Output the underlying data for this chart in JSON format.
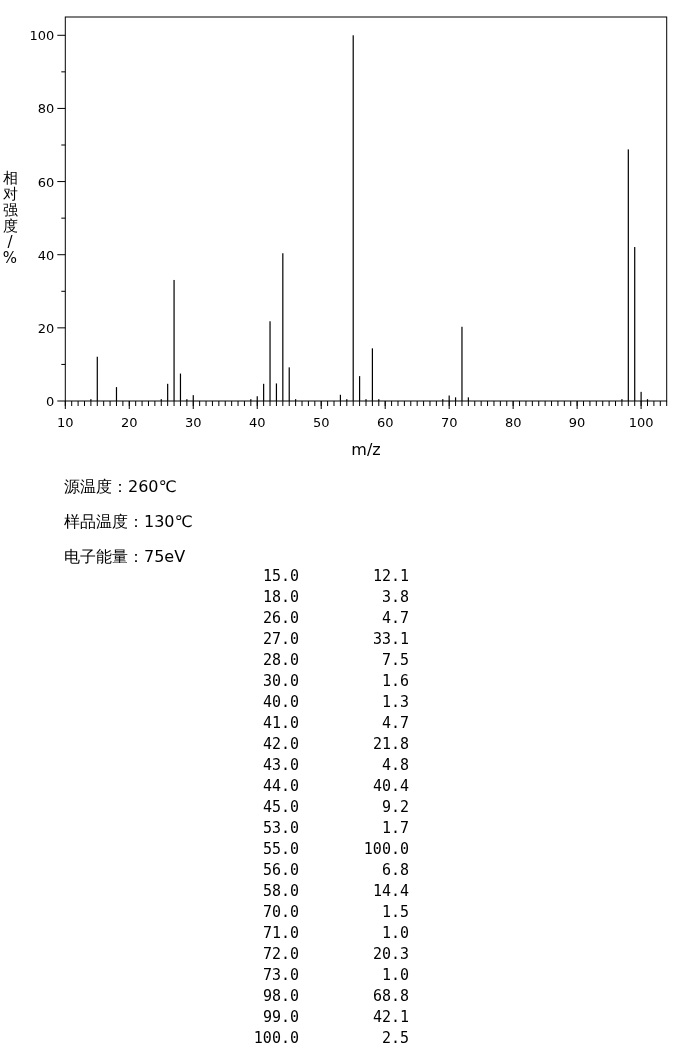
{
  "chart_data": {
    "type": "bar",
    "xlabel": "m/z",
    "ylabel": "相对强度/%",
    "annotations": [
      "源温度：260℃",
      "样品温度：130℃",
      "电子能量：75eV",
      "15.0",
      "12.1",
      "18.0",
      "3.8",
      "26.0",
      "4.7",
      "27.0",
      "33.1",
      "28.0",
      "7.5",
      "30.0",
      "1.6",
      "40.0",
      "1.3",
      "41.0",
      "4.7",
      "42.0",
      "21.8",
      "43.0",
      "4.8",
      "44.0",
      "40.4",
      "45.0",
      "9.2",
      "53.0",
      "1.7",
      "55.0",
      "100.0",
      "56.0",
      "6.8",
      "58.0",
      "14.4",
      "70.0",
      "1.5",
      "71.0",
      "1.0",
      "72.0",
      "20.3",
      "73.0",
      "1.0",
      "98.0",
      "68.8",
      "99.0",
      "42.1",
      "100.0",
      "2.5"
    ],
    "x": [
      14,
      15,
      18,
      25,
      26,
      27,
      28,
      29,
      30,
      39,
      40,
      41,
      42,
      43,
      44,
      45,
      46,
      53,
      54,
      55,
      56,
      57,
      58,
      59,
      69,
      70,
      71,
      72,
      73,
      97,
      98,
      99,
      100,
      101
    ],
    "values": [
      0.5,
      12.1,
      3.8,
      0.5,
      4.7,
      33.1,
      7.5,
      0.5,
      1.6,
      0.5,
      1.3,
      4.7,
      21.8,
      4.8,
      40.4,
      9.2,
      0.5,
      1.7,
      0.5,
      100.0,
      6.8,
      0.5,
      14.4,
      0.5,
      0.5,
      1.5,
      1.0,
      20.3,
      1.0,
      0.5,
      68.8,
      42.1,
      2.5,
      0.5
    ],
    "color": "#000000",
    "xlim": [
      10,
      104
    ],
    "ylim": [
      0,
      105
    ],
    "xticks": [
      10,
      20,
      30,
      40,
      50,
      60,
      70,
      80,
      90,
      100
    ],
    "yticks": [
      0,
      {
        "value": 10,
        "label": null
      },
      20,
      {
        "value": 30,
        "label": null
      },
      40,
      {
        "value": 50,
        "label": null
      },
      60,
      {
        "value": 70,
        "label": null
      },
      80,
      {
        "value": 90,
        "label": null
      },
      100
    ]
  }
}
